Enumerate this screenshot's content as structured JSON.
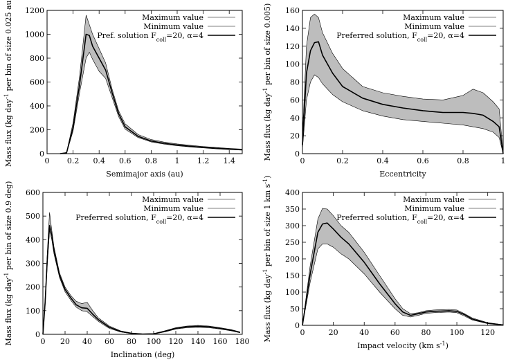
{
  "figure_description": "",
  "chart_data": [
    {
      "id": "semimajor",
      "type": "area",
      "xlabel": "Semimajor axis (au)",
      "ylabel_main": "Mass flux (kg day",
      "ylabel_sup": "-1",
      "ylabel_rest": " per bin of size 0.025 au)",
      "xlim": [
        0,
        1.5
      ],
      "ylim": [
        0,
        1200
      ],
      "xticks": [
        0,
        0.2,
        0.4,
        0.6,
        0.8,
        1,
        1.2,
        1.4
      ],
      "xtick_labels": [
        "0",
        "0.2",
        "0.4",
        "0.6",
        "0.8",
        "1",
        "1.2",
        "1.4"
      ],
      "yticks": [
        0,
        200,
        400,
        600,
        800,
        1000,
        1200
      ],
      "ytick_labels": [
        "0",
        "200",
        "400",
        "600",
        "800",
        "1000",
        "1200"
      ],
      "legend": {
        "max_label": "Maximum value",
        "min_label": "Minimum value",
        "pref_main": "Pref. solution F",
        "pref_sub": "coll",
        "pref_rest": "=20, α=4"
      },
      "x": [
        0.1,
        0.15,
        0.2,
        0.25,
        0.3,
        0.325,
        0.35,
        0.4,
        0.45,
        0.5,
        0.55,
        0.6,
        0.7,
        0.8,
        0.9,
        1.0,
        1.1,
        1.2,
        1.3,
        1.4,
        1.5
      ],
      "max": [
        0,
        10,
        260,
        650,
        1160,
        1080,
        1000,
        880,
        760,
        540,
        360,
        250,
        160,
        118,
        97,
        82,
        70,
        60,
        52,
        44,
        38
      ],
      "min": [
        0,
        5,
        190,
        510,
        800,
        850,
        790,
        690,
        630,
        470,
        310,
        205,
        135,
        98,
        80,
        66,
        56,
        48,
        40,
        34,
        29
      ],
      "pref": [
        0,
        7,
        220,
        580,
        1000,
        990,
        900,
        800,
        700,
        510,
        335,
        225,
        145,
        106,
        87,
        73,
        62,
        53,
        46,
        39,
        33
      ]
    },
    {
      "id": "eccentricity",
      "type": "area",
      "xlabel": "Eccentricity",
      "ylabel_main": "Mass flux (kg day",
      "ylabel_sup": "-1",
      "ylabel_rest": " per bin of size 0.005)",
      "xlim": [
        0,
        1
      ],
      "ylim": [
        0,
        160
      ],
      "xticks": [
        0,
        0.2,
        0.4,
        0.6,
        0.8,
        1
      ],
      "xtick_labels": [
        "0",
        "0.2",
        "0.4",
        "0.6",
        "0.8",
        "1"
      ],
      "yticks": [
        0,
        20,
        40,
        60,
        80,
        100,
        120,
        140,
        160
      ],
      "ytick_labels": [
        "0",
        "20",
        "40",
        "60",
        "80",
        "100",
        "120",
        "140",
        "160"
      ],
      "legend": {
        "max_label": "Maximum value",
        "min_label": "Minimum value",
        "pref_main": "Preferred solution, F",
        "pref_sub": "coll",
        "pref_rest": "=20, α=4"
      },
      "x": [
        0,
        0.02,
        0.04,
        0.06,
        0.08,
        0.1,
        0.15,
        0.2,
        0.3,
        0.4,
        0.5,
        0.6,
        0.7,
        0.8,
        0.85,
        0.9,
        0.95,
        0.98,
        1.0
      ],
      "max": [
        20,
        120,
        152,
        156,
        152,
        135,
        112,
        95,
        75,
        68,
        64,
        61,
        60,
        65,
        72,
        68,
        58,
        50,
        0
      ],
      "min": [
        5,
        60,
        80,
        88,
        85,
        78,
        66,
        58,
        48,
        42,
        38,
        36,
        34,
        32,
        30,
        28,
        24,
        18,
        0
      ],
      "pref": [
        10,
        90,
        115,
        124,
        125,
        110,
        90,
        75,
        62,
        55,
        51,
        48,
        46,
        46,
        45,
        43,
        36,
        30,
        0
      ]
    },
    {
      "id": "inclination",
      "type": "area",
      "xlabel": "Inclination (deg)",
      "ylabel_main": "Mass flux (kg day",
      "ylabel_sup": "-1",
      "ylabel_rest": " per bin of size 0.9 deg)",
      "xlim": [
        0,
        180
      ],
      "ylim": [
        0,
        600
      ],
      "xticks": [
        0,
        20,
        40,
        60,
        80,
        100,
        120,
        140,
        160,
        180
      ],
      "xtick_labels": [
        "0",
        "20",
        "40",
        "60",
        "80",
        "100",
        "120",
        "140",
        "160",
        "180"
      ],
      "yticks": [
        0,
        100,
        200,
        300,
        400,
        500,
        600
      ],
      "ytick_labels": [
        "0",
        "100",
        "200",
        "300",
        "400",
        "500",
        "600"
      ],
      "legend": {
        "max_label": "Maximum value",
        "min_label": "Minimum value",
        "pref_main": "Preferred solution, F",
        "pref_sub": "coll",
        "pref_rest": "=20, α=4"
      },
      "x": [
        0,
        2,
        4,
        6,
        8,
        10,
        15,
        20,
        25,
        30,
        35,
        40,
        45,
        50,
        60,
        70,
        80,
        90,
        100,
        110,
        120,
        130,
        140,
        150,
        160,
        170,
        178
      ],
      "max": [
        0,
        150,
        350,
        515,
        440,
        370,
        260,
        200,
        165,
        140,
        130,
        135,
        100,
        70,
        35,
        15,
        5,
        2,
        3,
        15,
        28,
        35,
        38,
        35,
        28,
        20,
        10
      ],
      "min": [
        0,
        120,
        300,
        440,
        400,
        340,
        240,
        180,
        145,
        115,
        100,
        95,
        75,
        55,
        25,
        10,
        3,
        1,
        2,
        10,
        22,
        28,
        30,
        28,
        22,
        15,
        7
      ],
      "pref": [
        0,
        135,
        320,
        460,
        420,
        355,
        250,
        190,
        155,
        125,
        112,
        110,
        85,
        62,
        30,
        12,
        4,
        1,
        2,
        12,
        25,
        32,
        34,
        32,
        25,
        17,
        8
      ]
    },
    {
      "id": "velocity",
      "type": "area",
      "xlabel_main": "Impact velocity (km s",
      "xlabel_sup": "-1",
      "xlabel_rest": ")",
      "ylabel_main": "Mass flux (kg day",
      "ylabel_sup": "-1",
      "ylabel_mid": " per bin of size 1 km s",
      "ylabel_sup2": "-1",
      "ylabel_rest": ")",
      "xlim": [
        0,
        130
      ],
      "ylim": [
        0,
        400
      ],
      "xticks": [
        0,
        20,
        40,
        60,
        80,
        100,
        120
      ],
      "xtick_labels": [
        "0",
        "20",
        "40",
        "60",
        "80",
        "100",
        "120"
      ],
      "yticks": [
        0,
        50,
        100,
        150,
        200,
        250,
        300,
        350,
        400
      ],
      "ytick_labels": [
        "0",
        "50",
        "100",
        "150",
        "200",
        "250",
        "300",
        "350",
        "400"
      ],
      "legend": {
        "max_label": "Maximum value",
        "min_label": "Minimum value",
        "pref_main": "Preferred solution, F",
        "pref_sub": "coll",
        "pref_rest": "=20, α=4"
      },
      "x": [
        0,
        5,
        10,
        13,
        16,
        20,
        25,
        30,
        40,
        50,
        60,
        65,
        70,
        75,
        80,
        85,
        90,
        95,
        100,
        105,
        110,
        120,
        130
      ],
      "max": [
        0,
        180,
        320,
        352,
        350,
        330,
        300,
        280,
        220,
        150,
        80,
        50,
        35,
        38,
        44,
        46,
        47,
        48,
        46,
        35,
        22,
        8,
        2
      ],
      "min": [
        0,
        130,
        230,
        245,
        245,
        235,
        215,
        200,
        155,
        100,
        50,
        30,
        25,
        30,
        36,
        38,
        39,
        40,
        38,
        28,
        16,
        5,
        1
      ],
      "pref": [
        0,
        155,
        280,
        305,
        308,
        290,
        265,
        245,
        190,
        125,
        65,
        40,
        30,
        35,
        40,
        42,
        43,
        44,
        42,
        32,
        19,
        6,
        1
      ]
    }
  ]
}
